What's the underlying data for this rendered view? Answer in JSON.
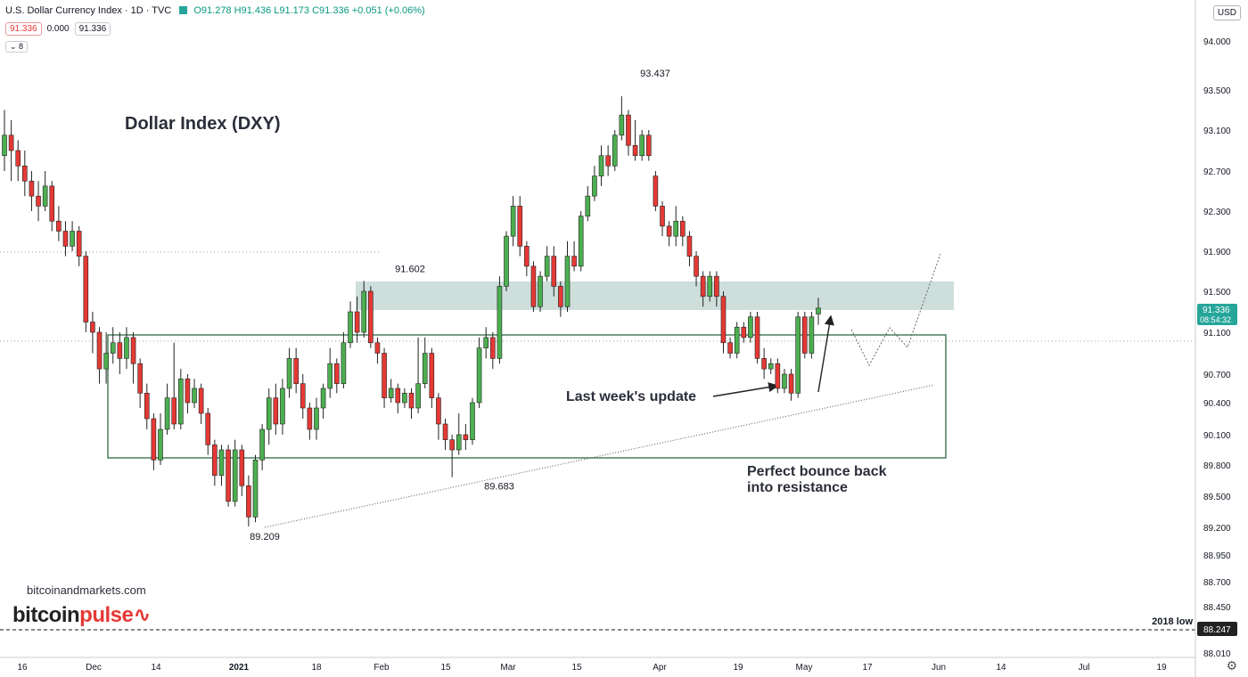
{
  "header": {
    "symbol": "U.S. Dollar Currency Index · 1D · TVC",
    "ohlc": "O91.278 H91.436 L91.173 C91.336 +0.051 (+0.06%)",
    "bid": "91.336",
    "spread": "0.000",
    "ask": "91.336",
    "indicator_count": "8",
    "currency": "USD"
  },
  "annotations": {
    "title": "Dollar Index (DXY)",
    "last_week": "Last week's update",
    "bounce_line1": "Perfect bounce back",
    "bounce_line2": "into resistance",
    "low_2018": "2018 low"
  },
  "watermark": {
    "site": "bitcoinandmarkets.com",
    "brand_a": "bitcoin",
    "brand_b": "pulse"
  },
  "colors": {
    "up": "#4caf50",
    "down": "#e53935",
    "resistance_zone": "#bcd3cf",
    "range_box": "#2e6b45",
    "price_label": "#26a69a"
  },
  "chart_data": {
    "type": "candlestick",
    "ylim": [
      88.0,
      94.2
    ],
    "y_ticks": [
      "94.000",
      "93.500",
      "93.100",
      "92.700",
      "92.300",
      "91.900",
      "91.500",
      "91.100",
      "90.700",
      "90.400",
      "90.100",
      "89.800",
      "89.500",
      "89.200",
      "88.950",
      "88.700",
      "88.450",
      "88.247",
      "88.010"
    ],
    "x_ticks": [
      "16",
      "Dec",
      "14",
      "2021",
      "18",
      "Feb",
      "15",
      "Mar",
      "15",
      "Apr",
      "19",
      "May",
      "17",
      "Jun",
      "14",
      "Jul",
      "19"
    ],
    "last_price": "91.336",
    "countdown": "08:54:32",
    "low_2018": "88.247",
    "labels": [
      {
        "text": "93.437",
        "value": 93.437
      },
      {
        "text": "91.602",
        "value": 91.602
      },
      {
        "text": "89.683",
        "value": 89.683
      },
      {
        "text": "89.209",
        "value": 89.209
      }
    ],
    "candles": [
      [
        92.85,
        93.05,
        93.3,
        92.7
      ],
      [
        93.05,
        92.9,
        93.2,
        92.6
      ],
      [
        92.9,
        92.75,
        93.0,
        92.6
      ],
      [
        92.75,
        92.6,
        92.9,
        92.45
      ],
      [
        92.6,
        92.45,
        92.7,
        92.3
      ],
      [
        92.45,
        92.35,
        92.6,
        92.2
      ],
      [
        92.35,
        92.55,
        92.7,
        92.3
      ],
      [
        92.55,
        92.2,
        92.6,
        92.1
      ],
      [
        92.2,
        92.1,
        92.35,
        92.0
      ],
      [
        92.1,
        91.95,
        92.2,
        91.85
      ],
      [
        91.95,
        92.1,
        92.2,
        91.9
      ],
      [
        92.1,
        91.85,
        92.15,
        91.75
      ],
      [
        91.85,
        91.2,
        91.9,
        91.1
      ],
      [
        91.2,
        91.1,
        91.3,
        90.9
      ],
      [
        91.1,
        90.75,
        91.15,
        90.6
      ],
      [
        90.75,
        90.9,
        91.1,
        90.6
      ],
      [
        90.9,
        91.0,
        91.15,
        90.8
      ],
      [
        91.0,
        90.85,
        91.1,
        90.7
      ],
      [
        90.85,
        91.05,
        91.15,
        90.75
      ],
      [
        91.05,
        90.8,
        91.1,
        90.6
      ],
      [
        90.8,
        90.5,
        90.85,
        90.35
      ],
      [
        90.5,
        90.25,
        90.6,
        90.15
      ],
      [
        90.25,
        89.85,
        90.3,
        89.75
      ],
      [
        89.85,
        90.15,
        90.3,
        89.8
      ],
      [
        90.15,
        90.45,
        90.6,
        90.1
      ],
      [
        90.45,
        90.2,
        91.0,
        90.15
      ],
      [
        90.2,
        90.65,
        90.75,
        90.15
      ],
      [
        90.65,
        90.4,
        90.7,
        90.3
      ],
      [
        90.4,
        90.55,
        90.65,
        90.35
      ],
      [
        90.55,
        90.3,
        90.6,
        90.2
      ],
      [
        90.3,
        90.0,
        90.35,
        89.9
      ],
      [
        90.0,
        89.7,
        90.05,
        89.6
      ],
      [
        89.7,
        89.95,
        90.0,
        89.6
      ],
      [
        89.95,
        89.45,
        90.0,
        89.4
      ],
      [
        89.45,
        89.95,
        90.05,
        89.4
      ],
      [
        89.95,
        89.6,
        90.0,
        89.5
      ],
      [
        89.6,
        89.3,
        89.7,
        89.209
      ],
      [
        89.3,
        89.85,
        89.9,
        89.25
      ],
      [
        89.85,
        90.15,
        90.2,
        89.75
      ],
      [
        90.15,
        90.45,
        90.55,
        90.0
      ],
      [
        90.45,
        90.2,
        90.6,
        90.1
      ],
      [
        90.2,
        90.55,
        90.65,
        90.1
      ],
      [
        90.55,
        90.85,
        90.95,
        90.45
      ],
      [
        90.85,
        90.6,
        90.95,
        90.5
      ],
      [
        90.6,
        90.35,
        90.7,
        90.25
      ],
      [
        90.35,
        90.15,
        90.4,
        90.05
      ],
      [
        90.15,
        90.35,
        90.45,
        90.05
      ],
      [
        90.35,
        90.55,
        90.6,
        90.25
      ],
      [
        90.55,
        90.8,
        90.95,
        90.45
      ],
      [
        90.8,
        90.6,
        90.85,
        90.5
      ],
      [
        90.6,
        91.0,
        91.1,
        90.55
      ],
      [
        91.0,
        91.3,
        91.4,
        90.95
      ],
      [
        91.3,
        91.1,
        91.45,
        91.0
      ],
      [
        91.1,
        91.5,
        91.602,
        91.05
      ],
      [
        91.5,
        91.0,
        91.55,
        90.95
      ],
      [
        91.0,
        90.9,
        91.05,
        90.8
      ],
      [
        90.9,
        90.45,
        90.95,
        90.35
      ],
      [
        90.45,
        90.55,
        90.65,
        90.4
      ],
      [
        90.55,
        90.4,
        90.6,
        90.3
      ],
      [
        90.4,
        90.5,
        90.55,
        90.35
      ],
      [
        90.5,
        90.35,
        90.55,
        90.25
      ],
      [
        90.35,
        90.6,
        91.05,
        90.3
      ],
      [
        90.6,
        90.9,
        91.05,
        90.55
      ],
      [
        90.9,
        90.45,
        90.95,
        90.35
      ],
      [
        90.45,
        90.2,
        90.5,
        90.05
      ],
      [
        90.2,
        90.05,
        90.25,
        89.95
      ],
      [
        90.05,
        89.95,
        90.1,
        89.683
      ],
      [
        89.95,
        90.1,
        90.3,
        89.9
      ],
      [
        90.1,
        90.05,
        90.2,
        89.95
      ],
      [
        90.05,
        90.4,
        90.45,
        90.0
      ],
      [
        90.4,
        90.95,
        91.05,
        90.35
      ],
      [
        90.95,
        91.05,
        91.15,
        90.85
      ],
      [
        91.05,
        90.85,
        91.1,
        90.75
      ],
      [
        90.85,
        91.55,
        91.65,
        90.8
      ],
      [
        91.55,
        92.05,
        92.1,
        91.5
      ],
      [
        92.05,
        92.35,
        92.45,
        91.95
      ],
      [
        92.35,
        91.95,
        92.45,
        91.85
      ],
      [
        91.95,
        91.75,
        92.0,
        91.65
      ],
      [
        91.75,
        91.35,
        91.8,
        91.3
      ],
      [
        91.35,
        91.65,
        91.7,
        91.3
      ],
      [
        91.65,
        91.85,
        91.95,
        91.6
      ],
      [
        91.85,
        91.55,
        91.95,
        91.45
      ],
      [
        91.55,
        91.35,
        91.6,
        91.25
      ],
      [
        91.35,
        91.85,
        92.0,
        91.3
      ],
      [
        91.85,
        91.75,
        92.0,
        91.7
      ],
      [
        91.75,
        92.25,
        92.3,
        91.7
      ],
      [
        92.25,
        92.45,
        92.55,
        92.2
      ],
      [
        92.45,
        92.65,
        92.75,
        92.4
      ],
      [
        92.65,
        92.85,
        92.95,
        92.55
      ],
      [
        92.85,
        92.75,
        92.95,
        92.65
      ],
      [
        92.75,
        93.05,
        93.1,
        92.7
      ],
      [
        93.05,
        93.25,
        93.437,
        93.0
      ],
      [
        93.25,
        92.95,
        93.3,
        92.85
      ],
      [
        92.95,
        92.85,
        93.2,
        92.8
      ],
      [
        92.85,
        93.05,
        93.1,
        92.8
      ],
      [
        93.05,
        92.85,
        93.1,
        92.8
      ],
      [
        92.65,
        92.35,
        92.7,
        92.3
      ],
      [
        92.35,
        92.15,
        92.4,
        92.05
      ],
      [
        92.15,
        92.05,
        92.2,
        91.95
      ],
      [
        92.05,
        92.2,
        92.35,
        91.95
      ],
      [
        92.2,
        92.05,
        92.25,
        91.95
      ],
      [
        92.05,
        91.85,
        92.1,
        91.75
      ],
      [
        91.85,
        91.65,
        91.9,
        91.55
      ],
      [
        91.65,
        91.45,
        91.7,
        91.35
      ],
      [
        91.45,
        91.65,
        91.7,
        91.4
      ],
      [
        91.65,
        91.45,
        91.7,
        91.35
      ],
      [
        91.45,
        91.0,
        91.5,
        90.9
      ],
      [
        91.0,
        90.9,
        91.05,
        90.85
      ],
      [
        90.9,
        91.15,
        91.2,
        90.85
      ],
      [
        91.15,
        91.05,
        91.2,
        91.0
      ],
      [
        91.05,
        91.25,
        91.3,
        91.0
      ],
      [
        91.25,
        90.85,
        91.3,
        90.8
      ],
      [
        90.85,
        90.75,
        90.95,
        90.65
      ],
      [
        90.75,
        90.8,
        90.85,
        90.7
      ],
      [
        90.8,
        90.55,
        90.85,
        90.5
      ],
      [
        90.55,
        90.7,
        90.75,
        90.5
      ],
      [
        90.7,
        90.5,
        90.75,
        90.42
      ],
      [
        90.5,
        91.25,
        91.3,
        90.45
      ],
      [
        91.25,
        90.9,
        91.3,
        90.85
      ],
      [
        90.9,
        91.25,
        91.3,
        90.85
      ],
      [
        91.278,
        91.336,
        91.436,
        91.173
      ]
    ]
  }
}
